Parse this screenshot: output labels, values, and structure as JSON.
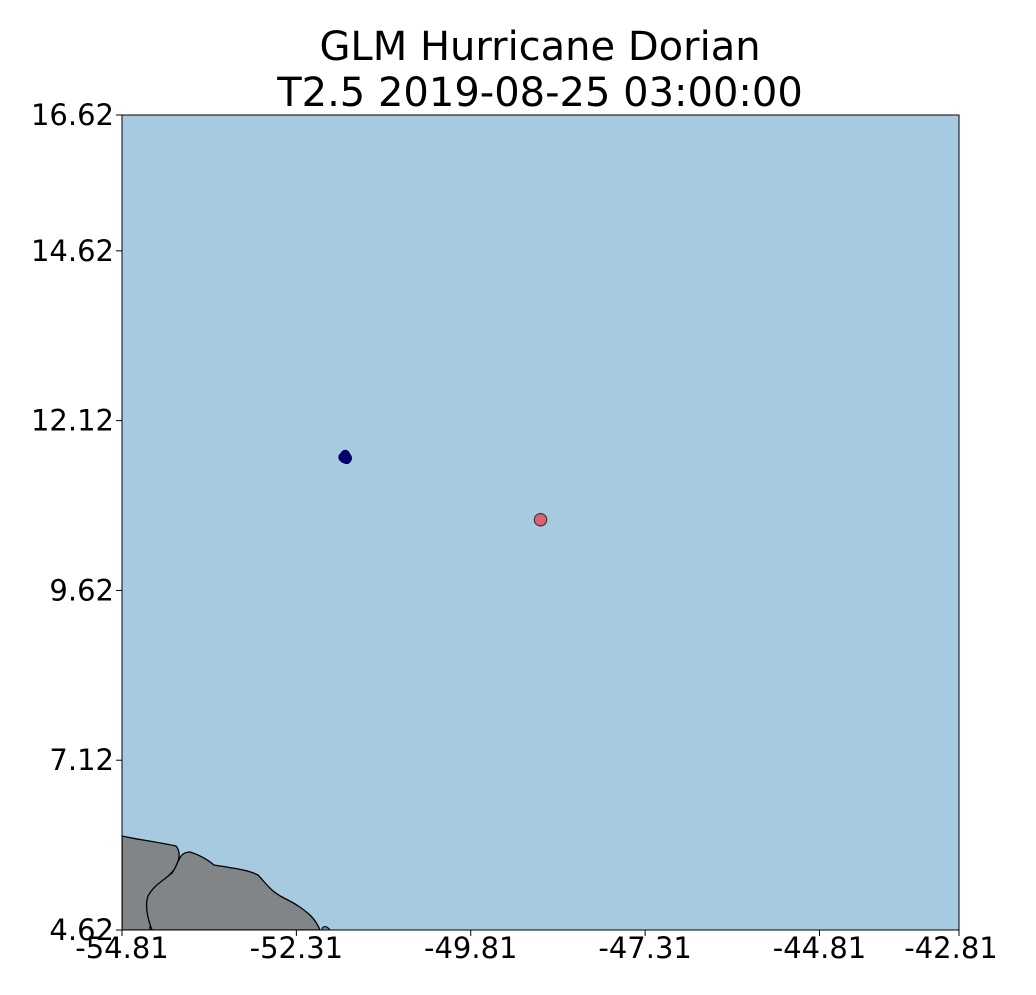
{
  "title": {
    "line1": "GLM Hurricane Dorian",
    "line2": "T2.5 2019-08-25 03:00:00"
  },
  "map": {
    "ocean_color": "#a6cadf",
    "land_color": "#818588",
    "coastline_color": "#000000",
    "lon_range": [
      -54.81,
      -42.81
    ],
    "lat_range": [
      4.62,
      16.62
    ],
    "x_ticks": [
      -54.81,
      -52.31,
      -49.81,
      -47.31,
      -44.81,
      -42.81
    ],
    "x_tick_labels": [
      "-54.81",
      "-52.31",
      "-49.81",
      "-47.31",
      "-44.81",
      "-42.81"
    ],
    "y_ticks": [
      16.62,
      14.62,
      12.12,
      9.62,
      7.12,
      4.62
    ],
    "y_tick_labels": [
      "16.62",
      "14.62",
      "12.12",
      "9.62",
      "7.12",
      "4.62"
    ],
    "lightning_cluster": {
      "color": "#00006e",
      "points": [
        {
          "lon": -51.64,
          "lat": 11.58
        },
        {
          "lon": -51.6,
          "lat": 11.6
        },
        {
          "lon": -51.62,
          "lat": 11.56
        },
        {
          "lon": -51.58,
          "lat": 11.57
        },
        {
          "lon": -51.61,
          "lat": 11.62
        },
        {
          "lon": -51.59,
          "lat": 11.55
        }
      ]
    },
    "storm_center": {
      "lon": -48.81,
      "lat": 10.66,
      "color": "#d9636e"
    }
  }
}
